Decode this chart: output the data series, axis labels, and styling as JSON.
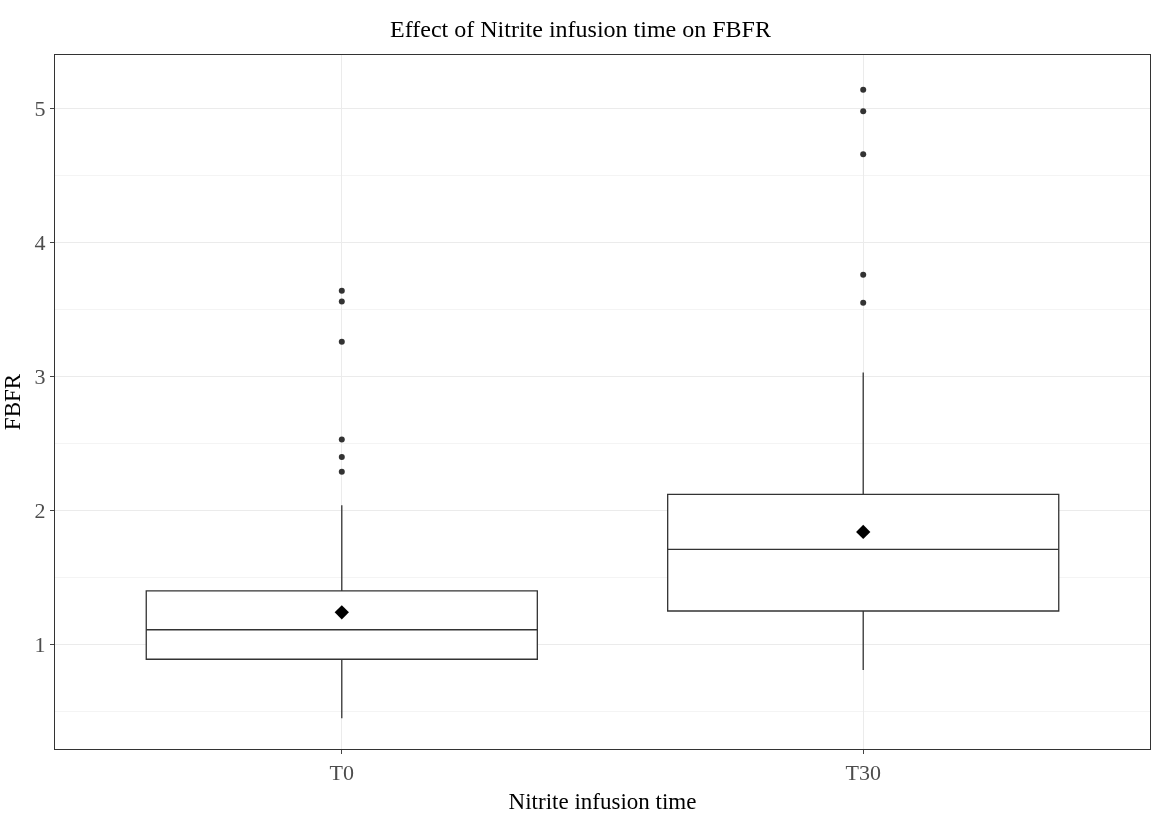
{
  "chart_data": {
    "type": "box",
    "title": "Effect of Nitrite infusion time on FBFR",
    "xlabel": "Nitrite infusion time",
    "ylabel": "FBFR",
    "categories": [
      "T0",
      "T30"
    ],
    "boxes": [
      {
        "low": 0.45,
        "q1": 0.89,
        "median": 1.11,
        "q3": 1.4,
        "high": 2.04,
        "mean": 1.24,
        "outliers": [
          3.64,
          3.56,
          3.26,
          2.53,
          2.4,
          2.29
        ]
      },
      {
        "low": 0.81,
        "q1": 1.25,
        "median": 1.71,
        "q3": 2.12,
        "high": 3.03,
        "mean": 1.84,
        "outliers": [
          5.14,
          4.98,
          4.66,
          3.76,
          3.55
        ]
      }
    ],
    "color": "#333333",
    "ylim": [
      0.22,
      5.4
    ],
    "yticks": [
      1,
      2,
      3,
      4,
      5
    ],
    "grid": true
  }
}
